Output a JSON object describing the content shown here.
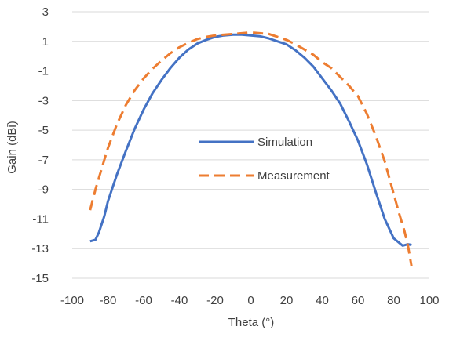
{
  "chart_data": {
    "type": "line",
    "title": "",
    "xlabel": "Theta (°)",
    "ylabel": "Gain (dBi)",
    "xlim": [
      -100,
      100
    ],
    "ylim": [
      -15,
      3
    ],
    "xticks": [
      -100,
      -80,
      -60,
      -40,
      -20,
      0,
      20,
      40,
      60,
      80,
      100
    ],
    "yticks": [
      -15,
      -13,
      -11,
      -9,
      -7,
      -5,
      -3,
      -1,
      1,
      3
    ],
    "grid": "horizontal",
    "legend_position": "center-right",
    "series": [
      {
        "name": "Simulation",
        "color": "#4472C4",
        "style": "solid",
        "x": [
          -90,
          -87,
          -85,
          -82,
          -80,
          -75,
          -70,
          -65,
          -60,
          -55,
          -50,
          -45,
          -40,
          -35,
          -30,
          -25,
          -20,
          -15,
          -10,
          -5,
          0,
          5,
          10,
          15,
          20,
          25,
          30,
          35,
          40,
          45,
          50,
          55,
          60,
          65,
          70,
          75,
          80,
          85,
          88,
          90
        ],
        "y": [
          -12.5,
          -12.4,
          -11.9,
          -10.8,
          -9.8,
          -8.0,
          -6.4,
          -4.9,
          -3.6,
          -2.5,
          -1.6,
          -0.8,
          -0.1,
          0.45,
          0.85,
          1.1,
          1.3,
          1.4,
          1.45,
          1.45,
          1.4,
          1.35,
          1.2,
          1.0,
          0.8,
          0.4,
          -0.1,
          -0.7,
          -1.5,
          -2.3,
          -3.2,
          -4.4,
          -5.7,
          -7.3,
          -9.2,
          -11.0,
          -12.3,
          -12.8,
          -12.7,
          -12.75
        ]
      },
      {
        "name": "Measurement",
        "color": "#ED7D31",
        "style": "dashed",
        "x": [
          -90,
          -87,
          -85,
          -82,
          -80,
          -75,
          -70,
          -65,
          -60,
          -55,
          -50,
          -45,
          -40,
          -35,
          -30,
          -25,
          -20,
          -15,
          -10,
          -5,
          0,
          5,
          10,
          15,
          20,
          25,
          30,
          35,
          40,
          45,
          50,
          55,
          60,
          65,
          70,
          75,
          80,
          83,
          86,
          88,
          90
        ],
        "y": [
          -10.4,
          -9.0,
          -8.2,
          -7.0,
          -6.2,
          -4.6,
          -3.3,
          -2.3,
          -1.5,
          -0.85,
          -0.3,
          0.2,
          0.6,
          0.9,
          1.15,
          1.3,
          1.4,
          1.45,
          1.5,
          1.55,
          1.6,
          1.55,
          1.5,
          1.3,
          1.1,
          0.8,
          0.45,
          0.1,
          -0.4,
          -0.8,
          -1.4,
          -2.0,
          -2.7,
          -3.9,
          -5.4,
          -7.1,
          -9.3,
          -10.6,
          -11.8,
          -12.8,
          -14.2
        ]
      }
    ]
  }
}
